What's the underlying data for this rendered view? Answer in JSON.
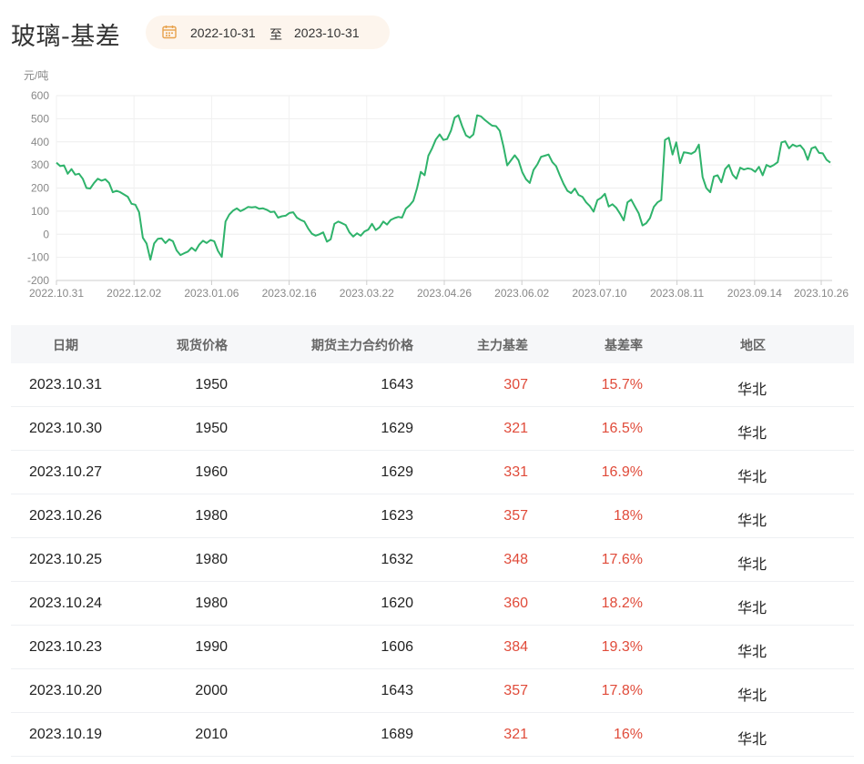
{
  "header": {
    "title": "玻璃-基差",
    "date_range": {
      "start": "2022-10-31",
      "separator": "至",
      "end": "2023-10-31"
    }
  },
  "colors": {
    "line": "#2fb36b",
    "accent_red": "#e04b3a",
    "pill_bg": "#fdf5ed",
    "calendar_icon": "#e8a24d"
  },
  "icons": {
    "date_picker": "calendar-icon"
  },
  "chart_data": {
    "type": "line",
    "ylabel": "元/吨",
    "ylim": [
      -200,
      600
    ],
    "yticks": [
      600,
      500,
      400,
      300,
      200,
      100,
      0,
      -100,
      -200
    ],
    "xtick_labels": [
      "2022.10.31",
      "2022.12.02",
      "2023.01.06",
      "2023.02.16",
      "2023.03.22",
      "2023.04.26",
      "2023.06.02",
      "2023.07.10",
      "2023.08.11",
      "2023.09.14",
      "2023.10.26"
    ],
    "grid": true,
    "series": [
      {
        "values": [
          310,
          295,
          298,
          262,
          282,
          258,
          262,
          240,
          200,
          198,
          222,
          240,
          232,
          238,
          222,
          182,
          188,
          182,
          172,
          162,
          132,
          128,
          95,
          -15,
          -40,
          -110,
          -40,
          -20,
          -18,
          -38,
          -22,
          -30,
          -70,
          -90,
          -82,
          -75,
          -58,
          -72,
          -45,
          -28,
          -38,
          -25,
          -30,
          -72,
          -98,
          55,
          85,
          102,
          112,
          100,
          108,
          118,
          116,
          118,
          110,
          112,
          106,
          96,
          98,
          72,
          78,
          80,
          92,
          95,
          72,
          62,
          55,
          25,
          2,
          -6,
          0,
          8,
          -32,
          -22,
          45,
          55,
          48,
          40,
          8,
          -10,
          4,
          -6,
          12,
          20,
          45,
          18,
          30,
          55,
          42,
          62,
          70,
          75,
          72,
          110,
          125,
          145,
          200,
          270,
          255,
          340,
          372,
          410,
          432,
          408,
          412,
          448,
          505,
          515,
          468,
          428,
          418,
          432,
          515,
          510,
          495,
          482,
          470,
          468,
          448,
          380,
          298,
          320,
          342,
          320,
          268,
          238,
          222,
          278,
          302,
          335,
          340,
          345,
          312,
          295,
          255,
          218,
          188,
          178,
          198,
          170,
          162,
          138,
          122,
          98,
          148,
          158,
          175,
          120,
          130,
          115,
          90,
          60,
          138,
          150,
          120,
          90,
          38,
          48,
          70,
          118,
          138,
          148,
          408,
          418,
          345,
          398,
          308,
          355,
          352,
          348,
          358,
          388,
          248,
          200,
          182,
          250,
          255,
          225,
          282,
          300,
          258,
          240,
          288,
          280,
          285,
          282,
          270,
          292,
          255,
          300,
          292,
          300,
          312,
          398,
          402,
          372,
          388,
          380,
          385,
          365,
          322,
          372,
          378,
          352,
          350,
          322,
          310
        ]
      }
    ]
  },
  "table": {
    "headers": [
      "日期",
      "现货价格",
      "期货主力合约价格",
      "主力基差",
      "基差率",
      "地区"
    ],
    "rows": [
      [
        "2023.10.31",
        "1950",
        "1643",
        "307",
        "15.7%",
        "华北"
      ],
      [
        "2023.10.30",
        "1950",
        "1629",
        "321",
        "16.5%",
        "华北"
      ],
      [
        "2023.10.27",
        "1960",
        "1629",
        "331",
        "16.9%",
        "华北"
      ],
      [
        "2023.10.26",
        "1980",
        "1623",
        "357",
        "18%",
        "华北"
      ],
      [
        "2023.10.25",
        "1980",
        "1632",
        "348",
        "17.6%",
        "华北"
      ],
      [
        "2023.10.24",
        "1980",
        "1620",
        "360",
        "18.2%",
        "华北"
      ],
      [
        "2023.10.23",
        "1990",
        "1606",
        "384",
        "19.3%",
        "华北"
      ],
      [
        "2023.10.20",
        "2000",
        "1643",
        "357",
        "17.8%",
        "华北"
      ],
      [
        "2023.10.19",
        "2010",
        "1689",
        "321",
        "16%",
        "华北"
      ]
    ]
  }
}
